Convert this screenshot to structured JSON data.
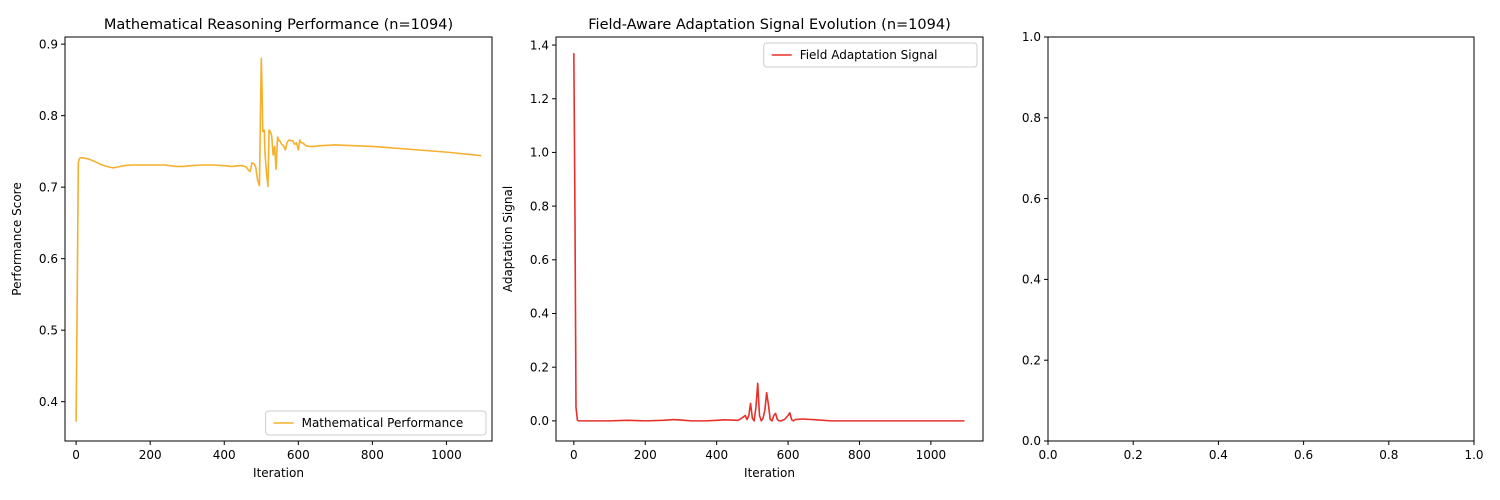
{
  "chart_data": [
    {
      "type": "line",
      "title": "Mathematical Reasoning Performance (n=1094)",
      "xlabel": "Iteration",
      "ylabel": "Performance Score",
      "xlim": [
        -30,
        1123
      ],
      "ylim": [
        0.345,
        0.91
      ],
      "xticks": [
        0,
        200,
        400,
        600,
        800,
        1000
      ],
      "yticks": [
        0.4,
        0.5,
        0.6,
        0.7,
        0.8,
        0.9
      ],
      "legend_position": "lower-right",
      "grid": false,
      "series": [
        {
          "name": "Mathematical Performance",
          "color": "#f5b02e",
          "x": [
            0,
            3,
            6,
            9,
            12,
            20,
            35,
            50,
            70,
            90,
            100,
            110,
            130,
            150,
            180,
            210,
            240,
            270,
            290,
            310,
            340,
            370,
            400,
            420,
            440,
            450,
            460,
            465,
            470,
            475,
            480,
            485,
            490,
            495,
            500,
            502,
            504,
            506,
            508,
            510,
            514,
            518,
            521,
            524,
            528,
            532,
            536,
            540,
            544,
            548,
            550,
            555,
            560,
            565,
            570,
            575,
            580,
            585,
            590,
            595,
            600,
            604,
            608,
            612,
            616,
            620,
            630,
            640,
            660,
            700,
            800,
            900,
            1000,
            1094
          ],
          "y": [
            0.372,
            0.55,
            0.735,
            0.74,
            0.741,
            0.741,
            0.739,
            0.736,
            0.731,
            0.728,
            0.727,
            0.728,
            0.73,
            0.731,
            0.731,
            0.731,
            0.731,
            0.729,
            0.729,
            0.73,
            0.731,
            0.731,
            0.73,
            0.729,
            0.73,
            0.73,
            0.728,
            0.724,
            0.722,
            0.734,
            0.733,
            0.728,
            0.71,
            0.702,
            0.88,
            0.84,
            0.778,
            0.778,
            0.78,
            0.748,
            0.72,
            0.701,
            0.78,
            0.778,
            0.772,
            0.745,
            0.757,
            0.725,
            0.77,
            0.765,
            0.765,
            0.76,
            0.758,
            0.752,
            0.763,
            0.766,
            0.765,
            0.765,
            0.76,
            0.762,
            0.752,
            0.766,
            0.762,
            0.762,
            0.76,
            0.758,
            0.757,
            0.757,
            0.758,
            0.759,
            0.757,
            0.753,
            0.749,
            0.744
          ]
        }
      ]
    },
    {
      "type": "line",
      "title": "Field-Aware Adaptation Signal Evolution (n=1094)",
      "xlabel": "Iteration",
      "ylabel": "Adaptation Signal",
      "xlim": [
        -50,
        1146
      ],
      "ylim": [
        -0.075,
        1.43
      ],
      "xticks": [
        0,
        200,
        400,
        600,
        800,
        1000
      ],
      "yticks": [
        0.0,
        0.2,
        0.4,
        0.6,
        0.8,
        1.0,
        1.2,
        1.4
      ],
      "legend_position": "upper-right",
      "grid": false,
      "series": [
        {
          "name": "Field Adaptation Signal",
          "color": "#e8302a",
          "x": [
            0,
            3,
            6,
            10,
            15,
            30,
            60,
            100,
            150,
            200,
            250,
            280,
            300,
            330,
            370,
            400,
            420,
            440,
            460,
            470,
            480,
            485,
            490,
            495,
            500,
            505,
            510,
            515,
            520,
            525,
            530,
            535,
            540,
            545,
            550,
            555,
            560,
            565,
            570,
            575,
            580,
            590,
            600,
            605,
            610,
            615,
            620,
            640,
            680,
            720,
            800,
            900,
            1000,
            1094
          ],
          "y": [
            1.37,
            0.8,
            0.05,
            0.002,
            0.0,
            0.0,
            0.0,
            0.0,
            0.002,
            0.0,
            0.002,
            0.005,
            0.003,
            0.0,
            0.0,
            0.002,
            0.004,
            0.003,
            0.002,
            0.01,
            0.02,
            0.005,
            0.02,
            0.065,
            0.01,
            0.0,
            0.05,
            0.14,
            0.02,
            0.0,
            0.01,
            0.04,
            0.105,
            0.06,
            0.005,
            0.0,
            0.02,
            0.028,
            0.005,
            0.0,
            0.0,
            0.005,
            0.02,
            0.03,
            0.004,
            0.0,
            0.005,
            0.007,
            0.004,
            0.0,
            0.0,
            0.0,
            0.0,
            0.0
          ]
        }
      ]
    },
    {
      "type": "line",
      "title": "",
      "xlabel": "",
      "ylabel": "",
      "xlim": [
        0.0,
        1.0
      ],
      "ylim": [
        0.0,
        1.0
      ],
      "xticks": [
        0.0,
        0.2,
        0.4,
        0.6,
        0.8,
        1.0
      ],
      "yticks": [
        0.0,
        0.2,
        0.4,
        0.6,
        0.8,
        1.0
      ],
      "tick_labels_x": [
        "0.0",
        "0.2",
        "0.4",
        "0.6",
        "0.8",
        "1.0"
      ],
      "tick_labels_y": [
        "0.0",
        "0.2",
        "0.4",
        "0.6",
        "0.8",
        "1.0"
      ],
      "grid": false,
      "series": []
    }
  ]
}
